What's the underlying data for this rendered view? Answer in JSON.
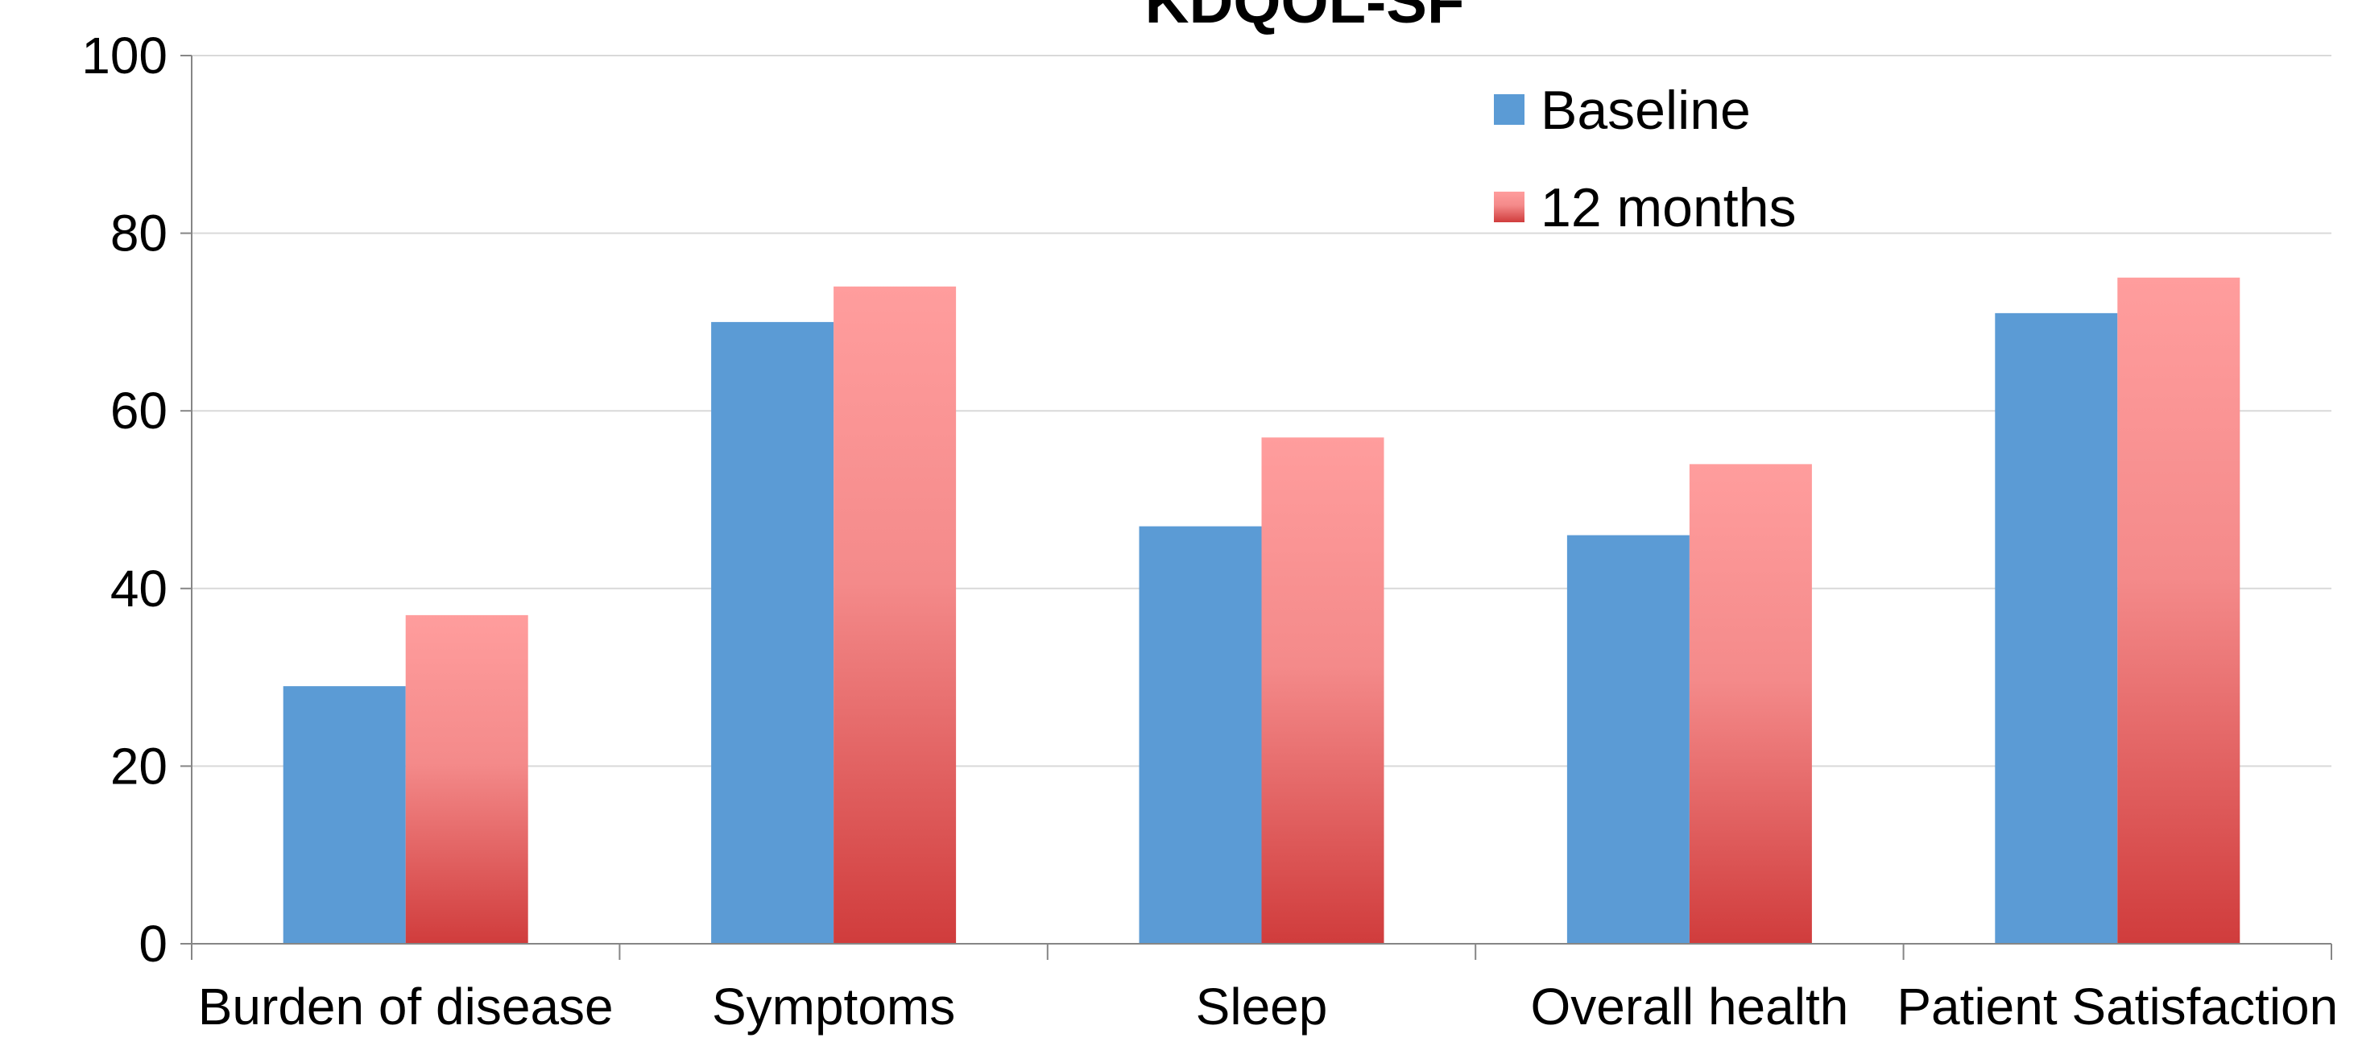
{
  "chart_data": {
    "type": "bar",
    "title": "KDQOL-SF",
    "xlabel": "",
    "ylabel": "",
    "categories": [
      "Burden of disease",
      "Symptoms",
      "Sleep",
      "Overall health",
      "Patient Satisfaction"
    ],
    "series": [
      {
        "name": "Baseline",
        "values": [
          29,
          70,
          47,
          46,
          71
        ],
        "color": "#5B9BD5"
      },
      {
        "name": "12 months",
        "values": [
          37,
          74,
          57,
          54,
          75
        ],
        "color_top": "#FF9D9D",
        "color_bottom": "#D03C3C"
      }
    ],
    "ylim": [
      0,
      100
    ],
    "yticks": [
      "0",
      "20",
      "40",
      "60",
      "80",
      "100"
    ],
    "grid": true,
    "legend_position": "top-right"
  }
}
